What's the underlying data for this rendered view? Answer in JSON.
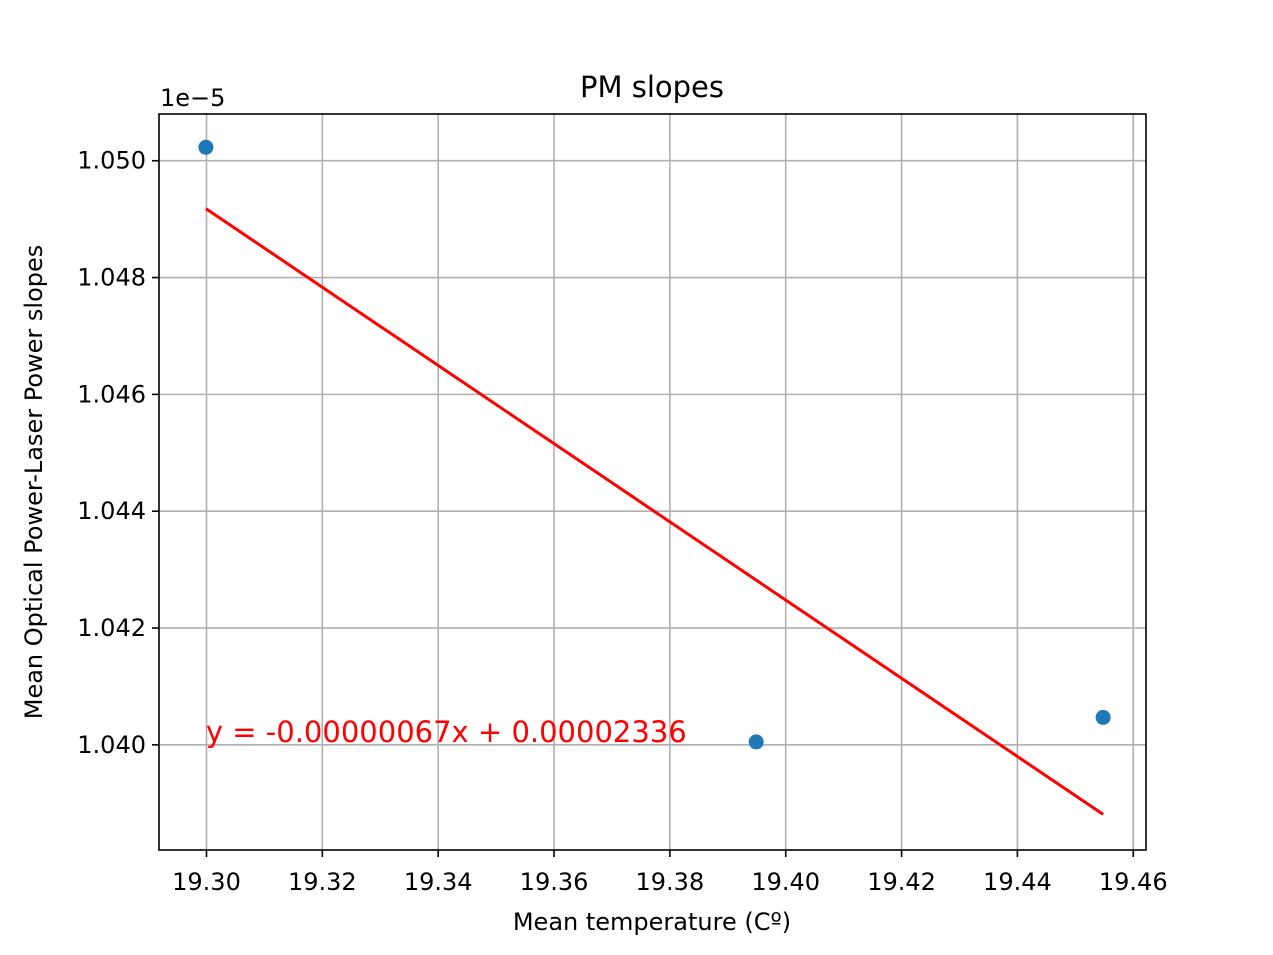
{
  "chart_data": {
    "type": "scatter",
    "title": "PM slopes",
    "xlabel": "Mean temperature (Cº)",
    "ylabel": "Mean Optical Power-Laser Power slopes",
    "offset_text": "1e−5",
    "xlim": [
      19.2918,
      19.4622
    ],
    "ylim": [
      1.0382,
      1.0508
    ],
    "y_scale_exponent": -5,
    "grid": true,
    "x_ticks": [
      19.3,
      19.32,
      19.34,
      19.36,
      19.38,
      19.4,
      19.42,
      19.44,
      19.46
    ],
    "x_tick_labels": [
      "19.30",
      "19.32",
      "19.34",
      "19.36",
      "19.38",
      "19.40",
      "19.42",
      "19.44",
      "19.46"
    ],
    "y_ticks": [
      1.04,
      1.042,
      1.044,
      1.046,
      1.048,
      1.05
    ],
    "y_tick_labels": [
      "1.040",
      "1.042",
      "1.044",
      "1.046",
      "1.048",
      "1.050"
    ],
    "series": [
      {
        "kind": "scatter",
        "color": "#1f77b4",
        "x": [
          19.2999,
          19.3949,
          19.4548
        ],
        "y": [
          1.05023,
          1.04005,
          1.04047
        ]
      },
      {
        "kind": "line",
        "color": "#ff0000",
        "x": [
          19.2999,
          19.4548
        ],
        "y": [
          1.04918,
          1.03881
        ]
      }
    ],
    "annotations": [
      {
        "text": "y = -0.00000067x + 0.00002336",
        "x": 19.2999,
        "y": 1.04,
        "color": "#ff0000"
      }
    ]
  }
}
